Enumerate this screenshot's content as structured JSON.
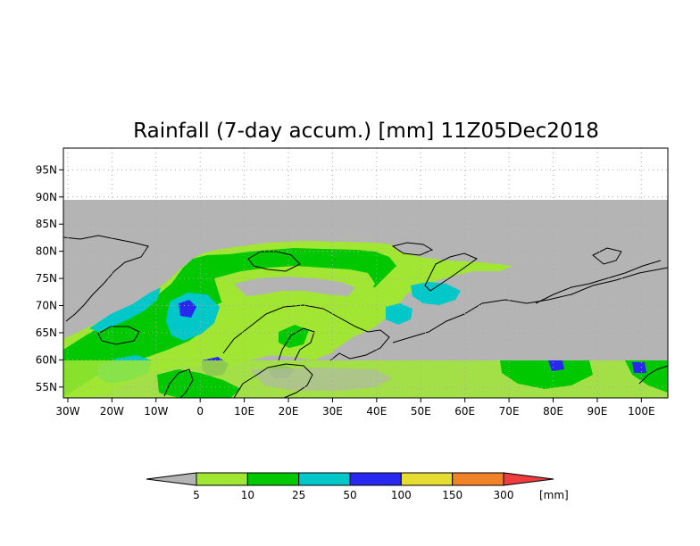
{
  "title": "Rainfall (7-day accum.) [mm] 11Z05Dec2018",
  "colors": {
    "no_data": "#b4b4b4",
    "background": "#ffffff",
    "coast": "#000000",
    "grid": "#aaaaaa"
  },
  "chart_data": {
    "type": "heatmap",
    "x_range": [
      -31,
      106
    ],
    "y_range": [
      53,
      99
    ],
    "data_extent_lat_max": 90,
    "x_ticks": [
      {
        "value": -30,
        "label": "30W"
      },
      {
        "value": -20,
        "label": "20W"
      },
      {
        "value": -10,
        "label": "10W"
      },
      {
        "value": 0,
        "label": "0"
      },
      {
        "value": 10,
        "label": "10E"
      },
      {
        "value": 20,
        "label": "20E"
      },
      {
        "value": 30,
        "label": "30E"
      },
      {
        "value": 40,
        "label": "40E"
      },
      {
        "value": 50,
        "label": "50E"
      },
      {
        "value": 60,
        "label": "60E"
      },
      {
        "value": 70,
        "label": "70E"
      },
      {
        "value": 80,
        "label": "80E"
      },
      {
        "value": 90,
        "label": "90E"
      },
      {
        "value": 100,
        "label": "100E"
      }
    ],
    "y_ticks": [
      {
        "value": 55,
        "label": "55N"
      },
      {
        "value": 60,
        "label": "60N"
      },
      {
        "value": 65,
        "label": "65N"
      },
      {
        "value": 70,
        "label": "70N"
      },
      {
        "value": 75,
        "label": "75N"
      },
      {
        "value": 80,
        "label": "80N"
      },
      {
        "value": 85,
        "label": "85N"
      },
      {
        "value": 90,
        "label": "90N"
      },
      {
        "value": 95,
        "label": "95N"
      }
    ],
    "grid": true,
    "colorbar": {
      "unit": "[mm]",
      "low_color": "#b4b4b4",
      "high_color": "#f03c3c",
      "bins": [
        {
          "color": "#a0e632"
        },
        {
          "color": "#00c800"
        },
        {
          "color": "#00c8c8"
        },
        {
          "color": "#2828f0"
        },
        {
          "color": "#e6dc32"
        },
        {
          "color": "#f08228"
        }
      ],
      "thresholds": [
        "5",
        "10",
        "25",
        "50",
        "100",
        "150",
        "300"
      ]
    }
  }
}
